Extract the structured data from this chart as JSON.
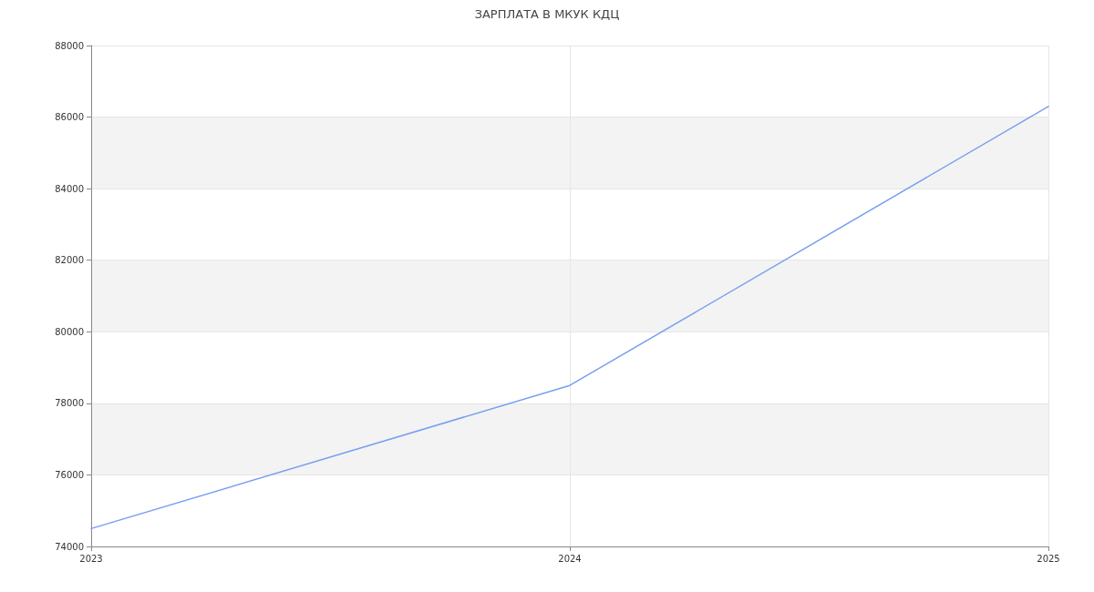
{
  "chart_data": {
    "type": "line",
    "title": "ЗАРПЛАТА В МКУК КДЦ",
    "x": [
      2023,
      2024,
      2025
    ],
    "series": [
      {
        "color": "#779ff0",
        "values": [
          74500,
          78500,
          86300
        ]
      }
    ],
    "xlim": [
      2023,
      2025
    ],
    "xticks": [
      2023,
      2024,
      2025
    ],
    "ylim": [
      74000,
      88000
    ],
    "yticks": [
      74000,
      76000,
      78000,
      80000,
      82000,
      84000,
      86000,
      88000
    ],
    "grid": true,
    "marker": "none",
    "line_style": "solid"
  }
}
